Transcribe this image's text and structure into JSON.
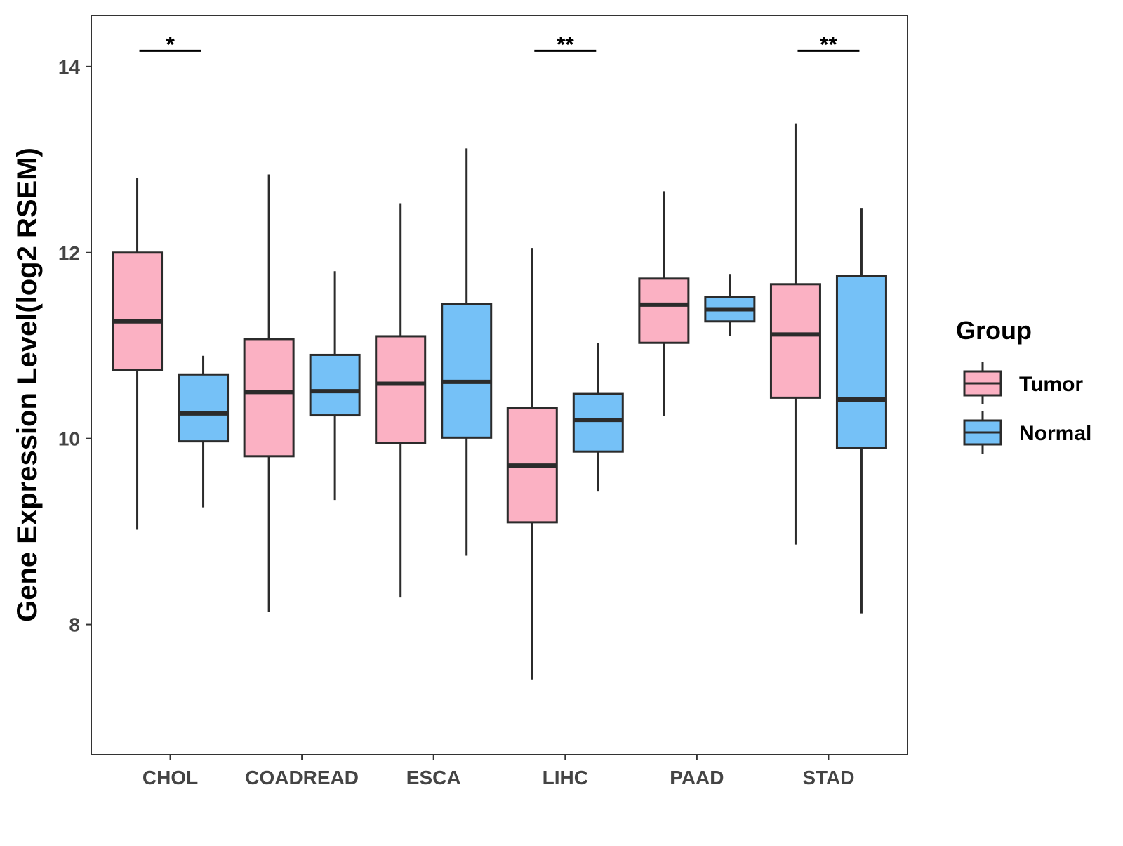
{
  "chart_data": {
    "type": "boxplot",
    "title": "",
    "xlabel": "",
    "ylabel": "Gene Expression Level(log2 RSEM)",
    "ylim": [
      6.6,
      14.55
    ],
    "yticks": [
      8,
      10,
      12,
      14
    ],
    "categories": [
      "CHOL",
      "COADREAD",
      "ESCA",
      "LIHC",
      "PAAD",
      "STAD"
    ],
    "legend": {
      "title": "Group",
      "position": "right"
    },
    "series": [
      {
        "name": "Tumor",
        "color": "#FBB1C3",
        "boxes": [
          {
            "category": "CHOL",
            "whisker_low": 9.02,
            "q1": 10.74,
            "median": 11.26,
            "q3": 12.0,
            "whisker_high": 12.8
          },
          {
            "category": "COADREAD",
            "whisker_low": 8.14,
            "q1": 9.81,
            "median": 10.5,
            "q3": 11.07,
            "whisker_high": 12.84
          },
          {
            "category": "ESCA",
            "whisker_low": 8.29,
            "q1": 9.95,
            "median": 10.59,
            "q3": 11.1,
            "whisker_high": 12.53
          },
          {
            "category": "LIHC",
            "whisker_low": 7.41,
            "q1": 9.1,
            "median": 9.71,
            "q3": 10.33,
            "whisker_high": 12.05
          },
          {
            "category": "PAAD",
            "whisker_low": 10.24,
            "q1": 11.03,
            "median": 11.44,
            "q3": 11.72,
            "whisker_high": 12.66
          },
          {
            "category": "STAD",
            "whisker_low": 8.86,
            "q1": 10.44,
            "median": 11.12,
            "q3": 11.66,
            "whisker_high": 13.39
          }
        ]
      },
      {
        "name": "Normal",
        "color": "#75C1F7",
        "boxes": [
          {
            "category": "CHOL",
            "whisker_low": 9.26,
            "q1": 9.97,
            "median": 10.27,
            "q3": 10.69,
            "whisker_high": 10.89
          },
          {
            "category": "COADREAD",
            "whisker_low": 9.34,
            "q1": 10.25,
            "median": 10.51,
            "q3": 10.9,
            "whisker_high": 11.8
          },
          {
            "category": "ESCA",
            "whisker_low": 8.74,
            "q1": 10.01,
            "median": 10.61,
            "q3": 11.45,
            "whisker_high": 13.12
          },
          {
            "category": "LIHC",
            "whisker_low": 9.43,
            "q1": 9.86,
            "median": 10.2,
            "q3": 10.48,
            "whisker_high": 11.03
          },
          {
            "category": "PAAD",
            "whisker_low": 11.1,
            "q1": 11.26,
            "median": 11.39,
            "q3": 11.52,
            "whisker_high": 11.77
          },
          {
            "category": "STAD",
            "whisker_low": 8.12,
            "q1": 9.9,
            "median": 10.42,
            "q3": 11.75,
            "whisker_high": 12.48
          }
        ]
      }
    ],
    "significance": [
      {
        "category": "CHOL",
        "label": "*",
        "y": 14.17
      },
      {
        "category": "LIHC",
        "label": "**",
        "y": 14.17
      },
      {
        "category": "STAD",
        "label": "**",
        "y": 14.17
      }
    ]
  }
}
